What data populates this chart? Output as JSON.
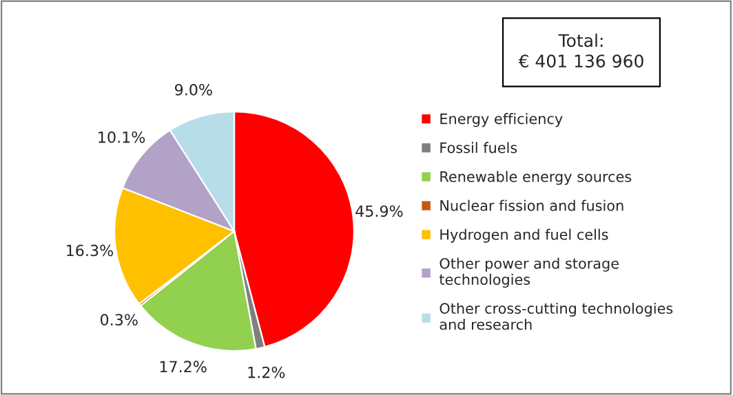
{
  "chart_data": {
    "type": "pie",
    "categories": [
      "Energy efficiency",
      "Fossil fuels",
      "Renewable energy sources",
      "Nuclear fission and fusion",
      "Hydrogen and fuel cells",
      "Other power and storage\ntechnologies",
      "Other cross-cutting technologies\nand research"
    ],
    "values": [
      45.9,
      1.2,
      17.2,
      0.3,
      16.3,
      10.1,
      9.0
    ],
    "value_labels": [
      "45.9%",
      "1.2%",
      "17.2%",
      "0.3%",
      "16.3%",
      "10.1%",
      "9.0%"
    ],
    "colors": [
      "#ff0000",
      "#7f7f7f",
      "#92d050",
      "#c55a11",
      "#ffc000",
      "#b3a2c7",
      "#b7dee8"
    ],
    "annotations": [
      "Total:\n€ 401 136 960"
    ],
    "legend": "right"
  }
}
